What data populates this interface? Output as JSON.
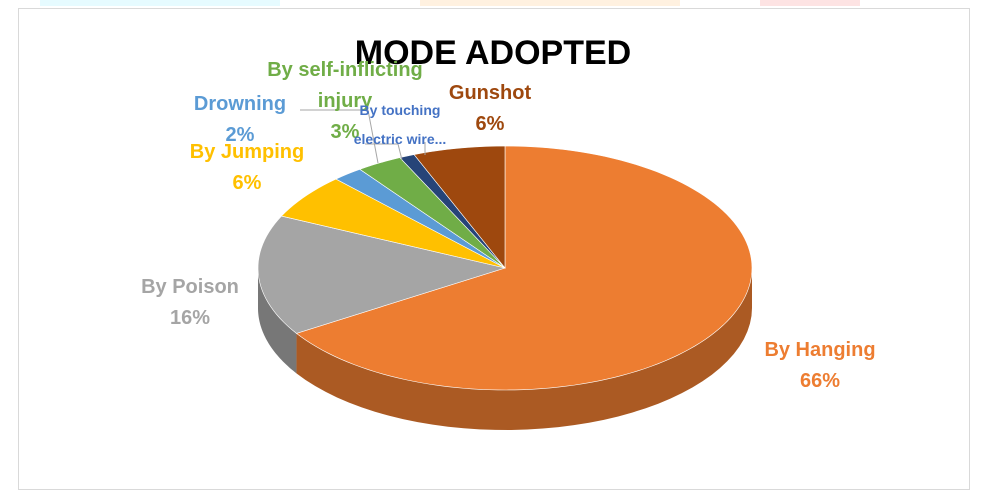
{
  "chart_data": {
    "type": "pie",
    "title": "MODE ADOPTED",
    "categories": [
      "By Hanging",
      "By Poison",
      "By Jumping",
      "Drowning",
      "By self-inflicting injury",
      "By touching electric wire...",
      "Gunshot"
    ],
    "values": [
      66,
      16,
      6,
      2,
      3,
      1,
      6
    ],
    "value_labels": [
      "66%",
      "16%",
      "6%",
      "2%",
      "3%",
      null,
      "6%"
    ],
    "colors": [
      "#ED7D31",
      "#A5A5A5",
      "#FFC000",
      "#5B9BD5",
      "#70AD47",
      "#264478",
      "#9E480E"
    ],
    "label_colors": [
      "#ED7D31",
      "#A5A5A5",
      "#FFC000",
      "#5B9BD5",
      "#70AD47",
      "#4472C4",
      "#9E480E"
    ]
  }
}
